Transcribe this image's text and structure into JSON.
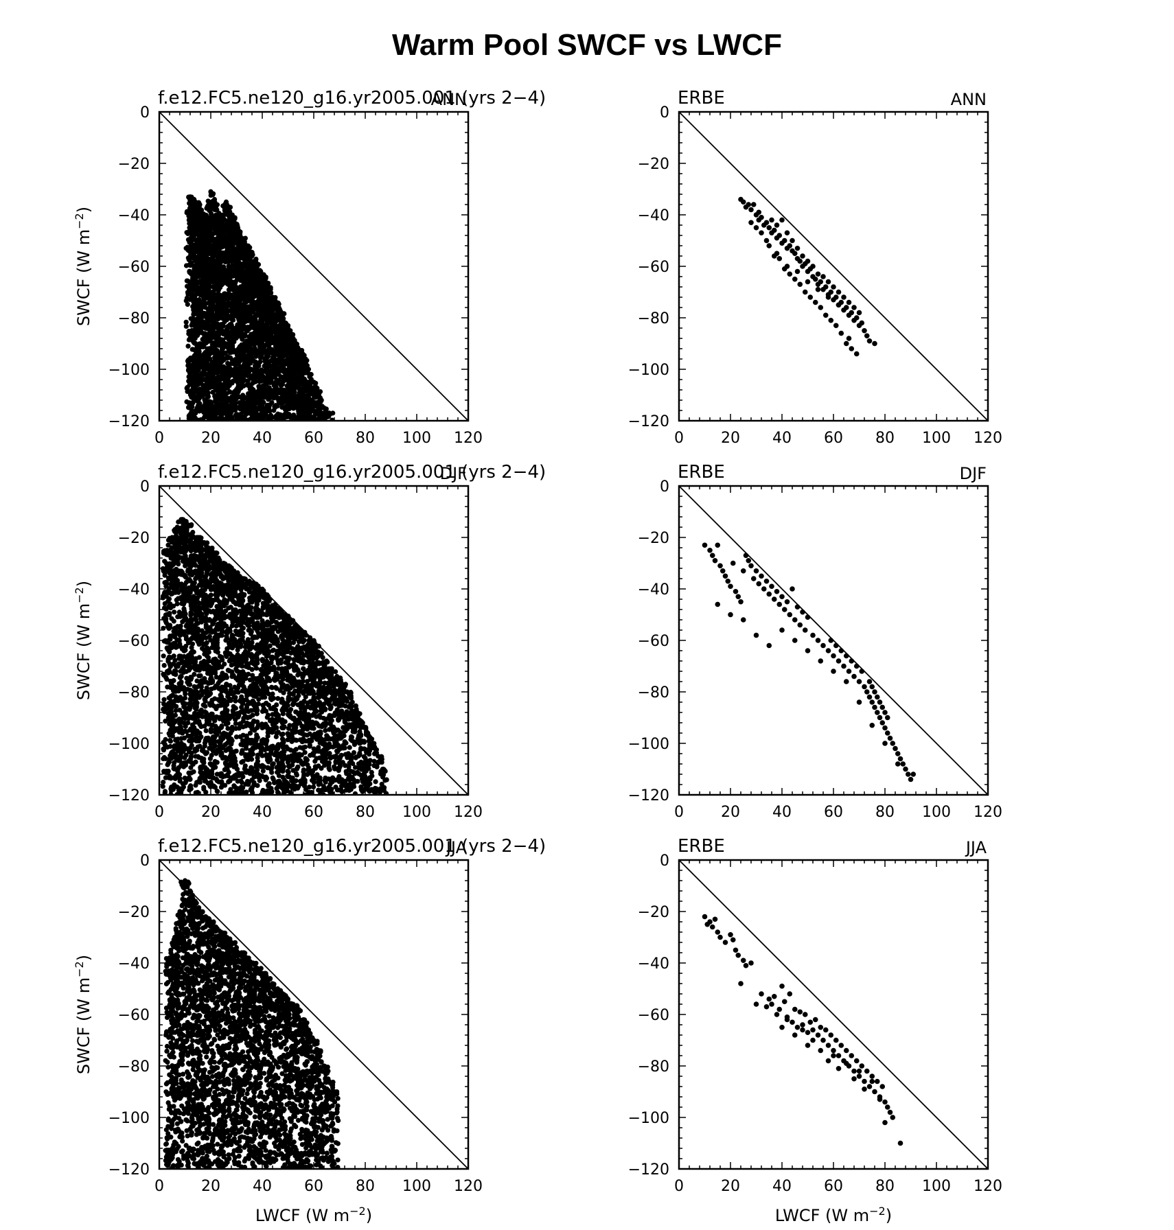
{
  "figure": {
    "title": "Warm Pool SWCF vs LWCF"
  },
  "axes": {
    "xlim": [
      0,
      120
    ],
    "ylim": [
      -120,
      0
    ],
    "xticks": [
      "0",
      "20",
      "40",
      "60",
      "80",
      "100",
      "120"
    ],
    "yticks": [
      "0",
      "−20",
      "−40",
      "−60",
      "−80",
      "−100",
      "−120"
    ],
    "ylabel": "SWCF (W m",
    "ylabel_sup": "−2",
    "ylabel_close": ")",
    "xlabel": "LWCF (W m",
    "xlabel_sup": "−2",
    "xlabel_close": ")"
  },
  "chart_data": [
    {
      "type": "scatter",
      "left_label": "f.e12.FC5.ne120_g16.yr2005.001 (yrs 2−4)",
      "right_label": "ANN",
      "xlim": [
        0,
        120
      ],
      "ylim": [
        -120,
        0
      ],
      "reference_line": [
        [
          0,
          0
        ],
        [
          120,
          -120
        ]
      ],
      "dense": true,
      "envelope": {
        "xmin": 12,
        "xmax": 66,
        "ymin": -120,
        "ymax": -31
      },
      "x": [
        12,
        13,
        14,
        15,
        16,
        17,
        18,
        19,
        20,
        21,
        22,
        23,
        24,
        25,
        26,
        27,
        28,
        29,
        30,
        31,
        32,
        33,
        34,
        35,
        36,
        37,
        38,
        39,
        40,
        41,
        42,
        43,
        44,
        45,
        46,
        47,
        48,
        49,
        50,
        51,
        52,
        53,
        54,
        55,
        56,
        57,
        58,
        59,
        60,
        61,
        62,
        63,
        64,
        65,
        66
      ],
      "y": [
        -33,
        -34,
        -35,
        -36,
        -38,
        -40,
        -42,
        -44,
        -31,
        -36,
        -38,
        -40,
        -42,
        -44,
        -35,
        -38,
        -40,
        -43,
        -45,
        -47,
        -49,
        -50,
        -52,
        -54,
        -56,
        -58,
        -60,
        -62,
        -64,
        -66,
        -68,
        -70,
        -72,
        -74,
        -76,
        -78,
        -80,
        -82,
        -84,
        -86,
        -88,
        -90,
        -92,
        -94,
        -96,
        -98,
        -100,
        -102,
        -105,
        -108,
        -110,
        -112,
        -115,
        -117,
        -117
      ]
    },
    {
      "type": "scatter",
      "left_label": "ERBE",
      "right_label": "ANN",
      "xlim": [
        0,
        120
      ],
      "ylim": [
        -120,
        0
      ],
      "reference_line": [
        [
          0,
          0
        ],
        [
          120,
          -120
        ]
      ],
      "dense": false,
      "x": [
        24,
        25,
        26,
        27,
        28,
        29,
        30,
        31,
        31,
        32,
        33,
        34,
        35,
        36,
        36,
        37,
        38,
        38,
        39,
        40,
        40,
        41,
        42,
        42,
        43,
        44,
        44,
        45,
        46,
        46,
        47,
        48,
        48,
        49,
        50,
        50,
        51,
        52,
        52,
        53,
        54,
        54,
        55,
        56,
        56,
        57,
        58,
        58,
        59,
        60,
        60,
        61,
        62,
        62,
        63,
        64,
        64,
        65,
        66,
        66,
        67,
        68,
        68,
        69,
        70,
        70,
        71,
        72,
        73,
        74,
        76,
        28,
        32,
        35,
        37,
        39,
        41,
        43,
        45,
        47,
        49,
        51,
        53,
        55,
        57,
        59,
        61,
        63,
        65,
        67,
        69,
        30,
        34,
        38,
        42,
        46,
        50,
        54,
        58,
        62,
        66
      ],
      "y": [
        -34,
        -35,
        -37,
        -36,
        -38,
        -36,
        -40,
        -39,
        -42,
        -41,
        -44,
        -43,
        -45,
        -42,
        -47,
        -46,
        -44,
        -49,
        -48,
        -42,
        -51,
        -50,
        -47,
        -53,
        -52,
        -54,
        -50,
        -55,
        -57,
        -53,
        -58,
        -56,
        -60,
        -59,
        -62,
        -58,
        -61,
        -64,
        -60,
        -65,
        -63,
        -67,
        -66,
        -64,
        -69,
        -68,
        -66,
        -71,
        -70,
        -68,
        -73,
        -72,
        -70,
        -75,
        -74,
        -72,
        -77,
        -76,
        -74,
        -79,
        -78,
        -76,
        -81,
        -80,
        -78,
        -83,
        -82,
        -85,
        -87,
        -89,
        -90,
        -43,
        -47,
        -52,
        -56,
        -57,
        -61,
        -63,
        -65,
        -67,
        -70,
        -72,
        -74,
        -76,
        -79,
        -81,
        -83,
        -86,
        -90,
        -92,
        -94,
        -45,
        -50,
        -55,
        -60,
        -62,
        -66,
        -69,
        -72,
        -75,
        -88
      ]
    },
    {
      "type": "scatter",
      "left_label": "f.e12.FC5.ne120_g16.yr2005.001 (yrs 2−4)",
      "right_label": "DJF",
      "xlim": [
        0,
        120
      ],
      "ylim": [
        -120,
        0
      ],
      "reference_line": [
        [
          0,
          0
        ],
        [
          120,
          -120
        ]
      ],
      "dense": true,
      "envelope": {
        "xmin": 3,
        "xmax": 87,
        "ymin": -120,
        "ymax": -13
      },
      "x": [
        3,
        5,
        7,
        9,
        11,
        13,
        15,
        17,
        19,
        21,
        23,
        25,
        27,
        29,
        31,
        33,
        35,
        37,
        39,
        41,
        43,
        45,
        47,
        49,
        51,
        53,
        55,
        57,
        59,
        61,
        63,
        65,
        67,
        69,
        71,
        73,
        75,
        77,
        79,
        81,
        83,
        85,
        87
      ],
      "y": [
        -25,
        -20,
        -16,
        -13,
        -15,
        -18,
        -20,
        -22,
        -24,
        -26,
        -28,
        -30,
        -31,
        -33,
        -35,
        -36,
        -37,
        -38,
        -40,
        -42,
        -44,
        -46,
        -48,
        -50,
        -52,
        -54,
        -56,
        -58,
        -60,
        -62,
        -65,
        -68,
        -71,
        -74,
        -77,
        -80,
        -84,
        -88,
        -92,
        -96,
        -100,
        -105,
        -110
      ]
    },
    {
      "type": "scatter",
      "left_label": "ERBE",
      "right_label": "DJF",
      "xlim": [
        0,
        120
      ],
      "ylim": [
        -120,
        0
      ],
      "reference_line": [
        [
          0,
          0
        ],
        [
          120,
          -120
        ]
      ],
      "dense": false,
      "x": [
        10,
        12,
        13,
        14,
        15,
        16,
        17,
        18,
        19,
        20,
        21,
        22,
        23,
        24,
        25,
        26,
        27,
        28,
        29,
        30,
        31,
        32,
        33,
        34,
        35,
        36,
        37,
        38,
        39,
        40,
        41,
        42,
        43,
        44,
        45,
        46,
        47,
        48,
        49,
        50,
        52,
        54,
        56,
        58,
        59,
        60,
        61,
        62,
        63,
        64,
        65,
        66,
        67,
        68,
        69,
        70,
        71,
        72,
        73,
        74,
        74,
        75,
        75,
        76,
        76,
        77,
        77,
        78,
        78,
        79,
        79,
        80,
        80,
        81,
        81,
        82,
        83,
        84,
        85,
        86,
        87,
        88,
        89,
        90,
        91,
        15,
        20,
        25,
        30,
        35,
        40,
        45,
        50,
        55,
        60,
        65,
        70,
        75,
        80,
        85
      ],
      "y": [
        -23,
        -25,
        -27,
        -29,
        -23,
        -31,
        -33,
        -35,
        -37,
        -39,
        -30,
        -41,
        -43,
        -45,
        -33,
        -27,
        -29,
        -31,
        -36,
        -33,
        -38,
        -35,
        -40,
        -37,
        -42,
        -39,
        -44,
        -41,
        -46,
        -43,
        -48,
        -45,
        -50,
        -40,
        -52,
        -47,
        -54,
        -49,
        -56,
        -51,
        -58,
        -60,
        -62,
        -64,
        -60,
        -66,
        -62,
        -68,
        -64,
        -70,
        -66,
        -72,
        -68,
        -74,
        -70,
        -76,
        -72,
        -78,
        -80,
        -82,
        -76,
        -84,
        -78,
        -86,
        -80,
        -88,
        -82,
        -90,
        -84,
        -92,
        -86,
        -94,
        -88,
        -96,
        -90,
        -98,
        -100,
        -102,
        -104,
        -106,
        -108,
        -110,
        -112,
        -114,
        -112,
        -46,
        -50,
        -52,
        -58,
        -62,
        -56,
        -60,
        -64,
        -68,
        -72,
        -76,
        -84,
        -93,
        -100,
        -108
      ]
    },
    {
      "type": "scatter",
      "left_label": "f.e12.FC5.ne120_g16.yr2005.001 (yrs 2−4)",
      "right_label": "JJA",
      "xlim": [
        0,
        120
      ],
      "ylim": [
        -120,
        0
      ],
      "reference_line": [
        [
          0,
          0
        ],
        [
          120,
          -120
        ]
      ],
      "dense": true,
      "envelope": {
        "xmin": 4,
        "xmax": 68,
        "ymin": -120,
        "ymax": -8
      },
      "x": [
        4,
        6,
        8,
        10,
        12,
        14,
        16,
        18,
        20,
        22,
        24,
        26,
        28,
        30,
        32,
        34,
        36,
        38,
        40,
        42,
        44,
        46,
        48,
        50,
        52,
        54,
        56,
        58,
        60,
        62,
        64,
        66,
        68
      ],
      "y": [
        -38,
        -30,
        -20,
        -8,
        -12,
        -16,
        -20,
        -22,
        -24,
        -26,
        -28,
        -30,
        -32,
        -34,
        -36,
        -38,
        -40,
        -42,
        -44,
        -46,
        -48,
        -50,
        -52,
        -54,
        -56,
        -58,
        -62,
        -66,
        -70,
        -74,
        -80,
        -86,
        -90
      ]
    },
    {
      "type": "scatter",
      "left_label": "ERBE",
      "right_label": "JJA",
      "xlim": [
        0,
        120
      ],
      "ylim": [
        -120,
        0
      ],
      "reference_line": [
        [
          0,
          0
        ],
        [
          120,
          -120
        ]
      ],
      "dense": false,
      "x": [
        10,
        11,
        12,
        13,
        14,
        15,
        16,
        18,
        20,
        21,
        22,
        23,
        24,
        25,
        26,
        28,
        30,
        32,
        34,
        35,
        36,
        37,
        38,
        39,
        40,
        41,
        42,
        43,
        44,
        45,
        46,
        47,
        48,
        49,
        50,
        51,
        52,
        53,
        54,
        55,
        56,
        57,
        58,
        59,
        60,
        61,
        62,
        63,
        64,
        65,
        66,
        67,
        68,
        69,
        70,
        71,
        72,
        73,
        74,
        75,
        76,
        77,
        78,
        79,
        80,
        81,
        82,
        83,
        86,
        40,
        45,
        50,
        55,
        60,
        65,
        70,
        75,
        80,
        42,
        48,
        52,
        58,
        62,
        68,
        72,
        78
      ],
      "y": [
        -22,
        -25,
        -24,
        -26,
        -23,
        -28,
        -30,
        -32,
        -29,
        -31,
        -35,
        -37,
        -48,
        -39,
        -41,
        -40,
        -56,
        -52,
        -57,
        -54,
        -56,
        -53,
        -60,
        -58,
        -49,
        -55,
        -61,
        -52,
        -63,
        -58,
        -65,
        -59,
        -64,
        -60,
        -67,
        -63,
        -66,
        -62,
        -68,
        -65,
        -70,
        -66,
        -72,
        -68,
        -74,
        -70,
        -76,
        -72,
        -78,
        -74,
        -80,
        -76,
        -82,
        -78,
        -84,
        -80,
        -86,
        -82,
        -88,
        -84,
        -90,
        -86,
        -92,
        -88,
        -94,
        -96,
        -98,
        -100,
        -110,
        -65,
        -68,
        -72,
        -74,
        -76,
        -79,
        -82,
        -86,
        -102,
        -62,
        -66,
        -70,
        -78,
        -81,
        -85,
        -89,
        -93
      ]
    }
  ]
}
